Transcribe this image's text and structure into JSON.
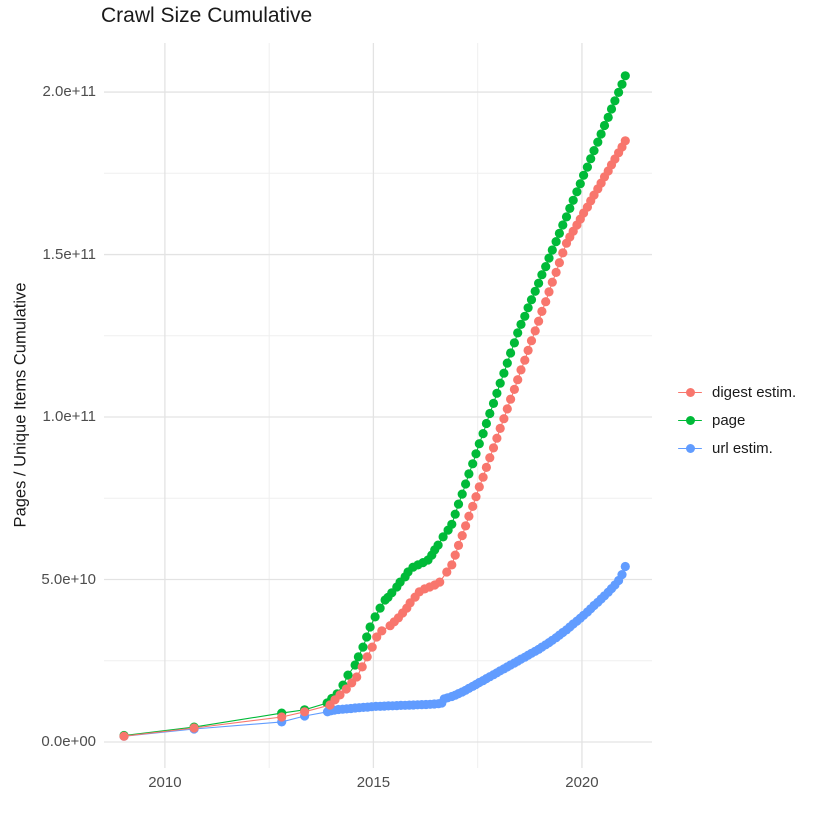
{
  "chart_data": {
    "type": "scatter",
    "title": "Crawl Size Cumulative",
    "xlabel": "",
    "ylabel": "Pages / Unique Items Cumulative",
    "values_unit": "1e9 items (y tick labels shown in scientific notation)",
    "grid": true,
    "legend_position": "right",
    "x_axis": {
      "lim": [
        2008.54,
        2021.68
      ],
      "ticks": [
        {
          "v": 2010,
          "label": "2010"
        },
        {
          "v": 2015,
          "label": "2015"
        },
        {
          "v": 2020,
          "label": "2020"
        }
      ],
      "minor": [
        2012.5,
        2017.5
      ]
    },
    "y_axis": {
      "lim": [
        -8,
        215.1
      ],
      "ticks": [
        {
          "v": 0,
          "label": "0.0e+00"
        },
        {
          "v": 50,
          "label": "5.0e+10"
        },
        {
          "v": 100,
          "label": "1.0e+11"
        },
        {
          "v": 150,
          "label": "1.5e+11"
        },
        {
          "v": 200,
          "label": "2.0e+11"
        }
      ],
      "minor": [
        25,
        75,
        125,
        175
      ]
    },
    "colors": {
      "major_grid": "#E3E3E3",
      "minor_grid": "#EFEFEF",
      "tick_text": "#4d4d4d"
    },
    "series": [
      {
        "name": "digest estim.",
        "color": "#F8766D",
        "points": [
          [
            2009.02,
            1.8
          ],
          [
            2010.7,
            4.3
          ],
          [
            2012.8,
            7.7
          ],
          [
            2013.35,
            9.3
          ],
          [
            2013.96,
            11.4
          ],
          [
            2014.08,
            13.0
          ],
          [
            2014.2,
            14.5
          ],
          [
            2014.35,
            16.3
          ],
          [
            2014.48,
            18.2
          ],
          [
            2014.6,
            20.0
          ],
          [
            2014.73,
            23.1
          ],
          [
            2014.85,
            26.2
          ],
          [
            2014.97,
            29.2
          ],
          [
            2015.08,
            32.3
          ],
          [
            2015.2,
            34.2
          ],
          [
            2015.4,
            35.8
          ],
          [
            2015.5,
            37.0
          ],
          [
            2015.6,
            38.2
          ],
          [
            2015.7,
            39.7
          ],
          [
            2015.8,
            41.2
          ],
          [
            2015.88,
            42.8
          ],
          [
            2016.0,
            44.6
          ],
          [
            2016.1,
            46.2
          ],
          [
            2016.23,
            47.1
          ],
          [
            2016.35,
            47.7
          ],
          [
            2016.47,
            48.3
          ],
          [
            2016.59,
            49.2
          ],
          [
            2016.76,
            52.3
          ],
          [
            2016.88,
            54.5
          ],
          [
            2016.96,
            57.5
          ],
          [
            2017.04,
            60.5
          ],
          [
            2017.13,
            63.5
          ],
          [
            2017.21,
            66.5
          ],
          [
            2017.29,
            69.5
          ],
          [
            2017.38,
            72.5
          ],
          [
            2017.46,
            75.5
          ],
          [
            2017.54,
            78.5
          ],
          [
            2017.63,
            81.5
          ],
          [
            2017.71,
            84.5
          ],
          [
            2017.79,
            87.5
          ],
          [
            2017.88,
            90.5
          ],
          [
            2017.96,
            93.5
          ],
          [
            2018.04,
            96.5
          ],
          [
            2018.13,
            99.5
          ],
          [
            2018.21,
            102.5
          ],
          [
            2018.29,
            105.5
          ],
          [
            2018.38,
            108.5
          ],
          [
            2018.46,
            111.5
          ],
          [
            2018.54,
            114.5
          ],
          [
            2018.63,
            117.5
          ],
          [
            2018.71,
            120.5
          ],
          [
            2018.79,
            123.5
          ],
          [
            2018.88,
            126.5
          ],
          [
            2018.96,
            129.5
          ],
          [
            2019.04,
            132.5
          ],
          [
            2019.13,
            135.5
          ],
          [
            2019.21,
            138.5
          ],
          [
            2019.29,
            141.5
          ],
          [
            2019.38,
            144.5
          ],
          [
            2019.46,
            147.5
          ],
          [
            2019.54,
            150.5
          ],
          [
            2019.63,
            153.5
          ],
          [
            2019.71,
            155.4
          ],
          [
            2019.79,
            157.2
          ],
          [
            2019.88,
            159.1
          ],
          [
            2019.96,
            160.9
          ],
          [
            2020.04,
            162.8
          ],
          [
            2020.13,
            164.6
          ],
          [
            2020.21,
            166.5
          ],
          [
            2020.29,
            168.3
          ],
          [
            2020.38,
            170.2
          ],
          [
            2020.46,
            172.0
          ],
          [
            2020.54,
            173.9
          ],
          [
            2020.63,
            175.7
          ],
          [
            2020.71,
            177.6
          ],
          [
            2020.79,
            179.4
          ],
          [
            2020.88,
            181.3
          ],
          [
            2020.96,
            183.1
          ],
          [
            2021.04,
            185.0
          ]
        ]
      },
      {
        "name": "page",
        "color": "#00BA38",
        "points": [
          [
            2009.02,
            2.0
          ],
          [
            2010.7,
            4.6
          ],
          [
            2012.8,
            8.9
          ],
          [
            2013.35,
            9.9
          ],
          [
            2013.89,
            12.0
          ],
          [
            2014.0,
            13.4
          ],
          [
            2014.13,
            14.8
          ],
          [
            2014.27,
            17.5
          ],
          [
            2014.39,
            20.6
          ],
          [
            2014.56,
            23.7
          ],
          [
            2014.64,
            26.2
          ],
          [
            2014.75,
            29.2
          ],
          [
            2014.84,
            32.3
          ],
          [
            2014.92,
            35.4
          ],
          [
            2015.04,
            38.5
          ],
          [
            2015.16,
            41.2
          ],
          [
            2015.28,
            43.7
          ],
          [
            2015.35,
            44.5
          ],
          [
            2015.44,
            45.9
          ],
          [
            2015.56,
            47.7
          ],
          [
            2015.64,
            49.2
          ],
          [
            2015.76,
            50.8
          ],
          [
            2015.83,
            52.3
          ],
          [
            2015.95,
            53.8
          ],
          [
            2016.07,
            54.5
          ],
          [
            2016.19,
            55.2
          ],
          [
            2016.31,
            56.0
          ],
          [
            2016.4,
            57.5
          ],
          [
            2016.47,
            59.1
          ],
          [
            2016.55,
            60.6
          ],
          [
            2016.67,
            63.1
          ],
          [
            2016.79,
            65.2
          ],
          [
            2016.88,
            67.0
          ],
          [
            2016.96,
            70.1
          ],
          [
            2017.04,
            73.2
          ],
          [
            2017.13,
            76.3
          ],
          [
            2017.21,
            79.4
          ],
          [
            2017.29,
            82.5
          ],
          [
            2017.38,
            85.6
          ],
          [
            2017.46,
            88.7
          ],
          [
            2017.54,
            91.8
          ],
          [
            2017.63,
            94.9
          ],
          [
            2017.71,
            98.0
          ],
          [
            2017.79,
            101.1
          ],
          [
            2017.88,
            104.2
          ],
          [
            2017.96,
            107.3
          ],
          [
            2018.04,
            110.4
          ],
          [
            2018.13,
            113.5
          ],
          [
            2018.21,
            116.6
          ],
          [
            2018.29,
            119.7
          ],
          [
            2018.38,
            122.8
          ],
          [
            2018.46,
            125.9
          ],
          [
            2018.54,
            128.5
          ],
          [
            2018.63,
            131.0
          ],
          [
            2018.71,
            133.6
          ],
          [
            2018.79,
            136.1
          ],
          [
            2018.88,
            138.7
          ],
          [
            2018.96,
            141.2
          ],
          [
            2019.04,
            143.8
          ],
          [
            2019.13,
            146.3
          ],
          [
            2019.21,
            148.9
          ],
          [
            2019.29,
            151.4
          ],
          [
            2019.38,
            154.0
          ],
          [
            2019.46,
            156.5
          ],
          [
            2019.54,
            159.1
          ],
          [
            2019.63,
            161.6
          ],
          [
            2019.71,
            164.2
          ],
          [
            2019.79,
            166.7
          ],
          [
            2019.88,
            169.3
          ],
          [
            2019.96,
            171.8
          ],
          [
            2020.04,
            174.4
          ],
          [
            2020.13,
            176.9
          ],
          [
            2020.21,
            179.5
          ],
          [
            2020.29,
            182.0
          ],
          [
            2020.38,
            184.6
          ],
          [
            2020.46,
            187.1
          ],
          [
            2020.54,
            189.7
          ],
          [
            2020.63,
            192.2
          ],
          [
            2020.71,
            194.8
          ],
          [
            2020.79,
            197.3
          ],
          [
            2020.88,
            199.9
          ],
          [
            2020.96,
            202.4
          ],
          [
            2021.04,
            205.0
          ]
        ]
      },
      {
        "name": "url estim.",
        "color": "#619CFF",
        "points": [
          [
            2009.02,
            1.8
          ],
          [
            2010.7,
            4.0
          ],
          [
            2012.8,
            6.2
          ],
          [
            2013.35,
            8.0
          ],
          [
            2013.9,
            9.3
          ],
          [
            2013.98,
            9.6
          ],
          [
            2014.06,
            9.8
          ],
          [
            2014.16,
            10.0
          ],
          [
            2014.26,
            10.1
          ],
          [
            2014.36,
            10.2
          ],
          [
            2014.46,
            10.3
          ],
          [
            2014.56,
            10.45
          ],
          [
            2014.66,
            10.55
          ],
          [
            2014.76,
            10.65
          ],
          [
            2014.86,
            10.75
          ],
          [
            2014.96,
            10.85
          ],
          [
            2015.06,
            10.95
          ],
          [
            2015.16,
            11.0
          ],
          [
            2015.26,
            11.05
          ],
          [
            2015.36,
            11.1
          ],
          [
            2015.46,
            11.15
          ],
          [
            2015.56,
            11.2
          ],
          [
            2015.66,
            11.25
          ],
          [
            2015.76,
            11.3
          ],
          [
            2015.86,
            11.35
          ],
          [
            2015.96,
            11.4
          ],
          [
            2016.06,
            11.45
          ],
          [
            2016.16,
            11.5
          ],
          [
            2016.26,
            11.55
          ],
          [
            2016.36,
            11.6
          ],
          [
            2016.46,
            11.7
          ],
          [
            2016.56,
            11.8
          ],
          [
            2016.64,
            12.0
          ],
          [
            2016.7,
            13.3
          ],
          [
            2016.78,
            13.6
          ],
          [
            2016.88,
            14.0
          ],
          [
            2016.96,
            14.4
          ],
          [
            2017.04,
            14.9
          ],
          [
            2017.13,
            15.4
          ],
          [
            2017.21,
            15.9
          ],
          [
            2017.29,
            16.5
          ],
          [
            2017.38,
            17.1
          ],
          [
            2017.46,
            17.7
          ],
          [
            2017.54,
            18.3
          ],
          [
            2017.63,
            18.9
          ],
          [
            2017.71,
            19.5
          ],
          [
            2017.79,
            20.1
          ],
          [
            2017.88,
            20.7
          ],
          [
            2017.96,
            21.3
          ],
          [
            2018.04,
            21.9
          ],
          [
            2018.13,
            22.5
          ],
          [
            2018.21,
            23.1
          ],
          [
            2018.29,
            23.7
          ],
          [
            2018.38,
            24.3
          ],
          [
            2018.46,
            24.9
          ],
          [
            2018.54,
            25.5
          ],
          [
            2018.63,
            26.1
          ],
          [
            2018.71,
            26.7
          ],
          [
            2018.79,
            27.3
          ],
          [
            2018.88,
            27.9
          ],
          [
            2018.96,
            28.5
          ],
          [
            2019.04,
            29.2
          ],
          [
            2019.13,
            29.9
          ],
          [
            2019.21,
            30.6
          ],
          [
            2019.29,
            31.3
          ],
          [
            2019.38,
            32.1
          ],
          [
            2019.46,
            32.9
          ],
          [
            2019.54,
            33.7
          ],
          [
            2019.63,
            34.5
          ],
          [
            2019.71,
            35.4
          ],
          [
            2019.79,
            36.3
          ],
          [
            2019.88,
            37.2
          ],
          [
            2019.96,
            38.1
          ],
          [
            2020.04,
            39.0
          ],
          [
            2020.13,
            40.0
          ],
          [
            2020.21,
            41.0
          ],
          [
            2020.29,
            42.0
          ],
          [
            2020.38,
            43.0
          ],
          [
            2020.46,
            44.0
          ],
          [
            2020.54,
            45.0
          ],
          [
            2020.63,
            46.1
          ],
          [
            2020.71,
            47.2
          ],
          [
            2020.79,
            48.3
          ],
          [
            2020.88,
            49.7
          ],
          [
            2020.96,
            51.5
          ],
          [
            2021.04,
            54.0
          ]
        ]
      }
    ]
  }
}
